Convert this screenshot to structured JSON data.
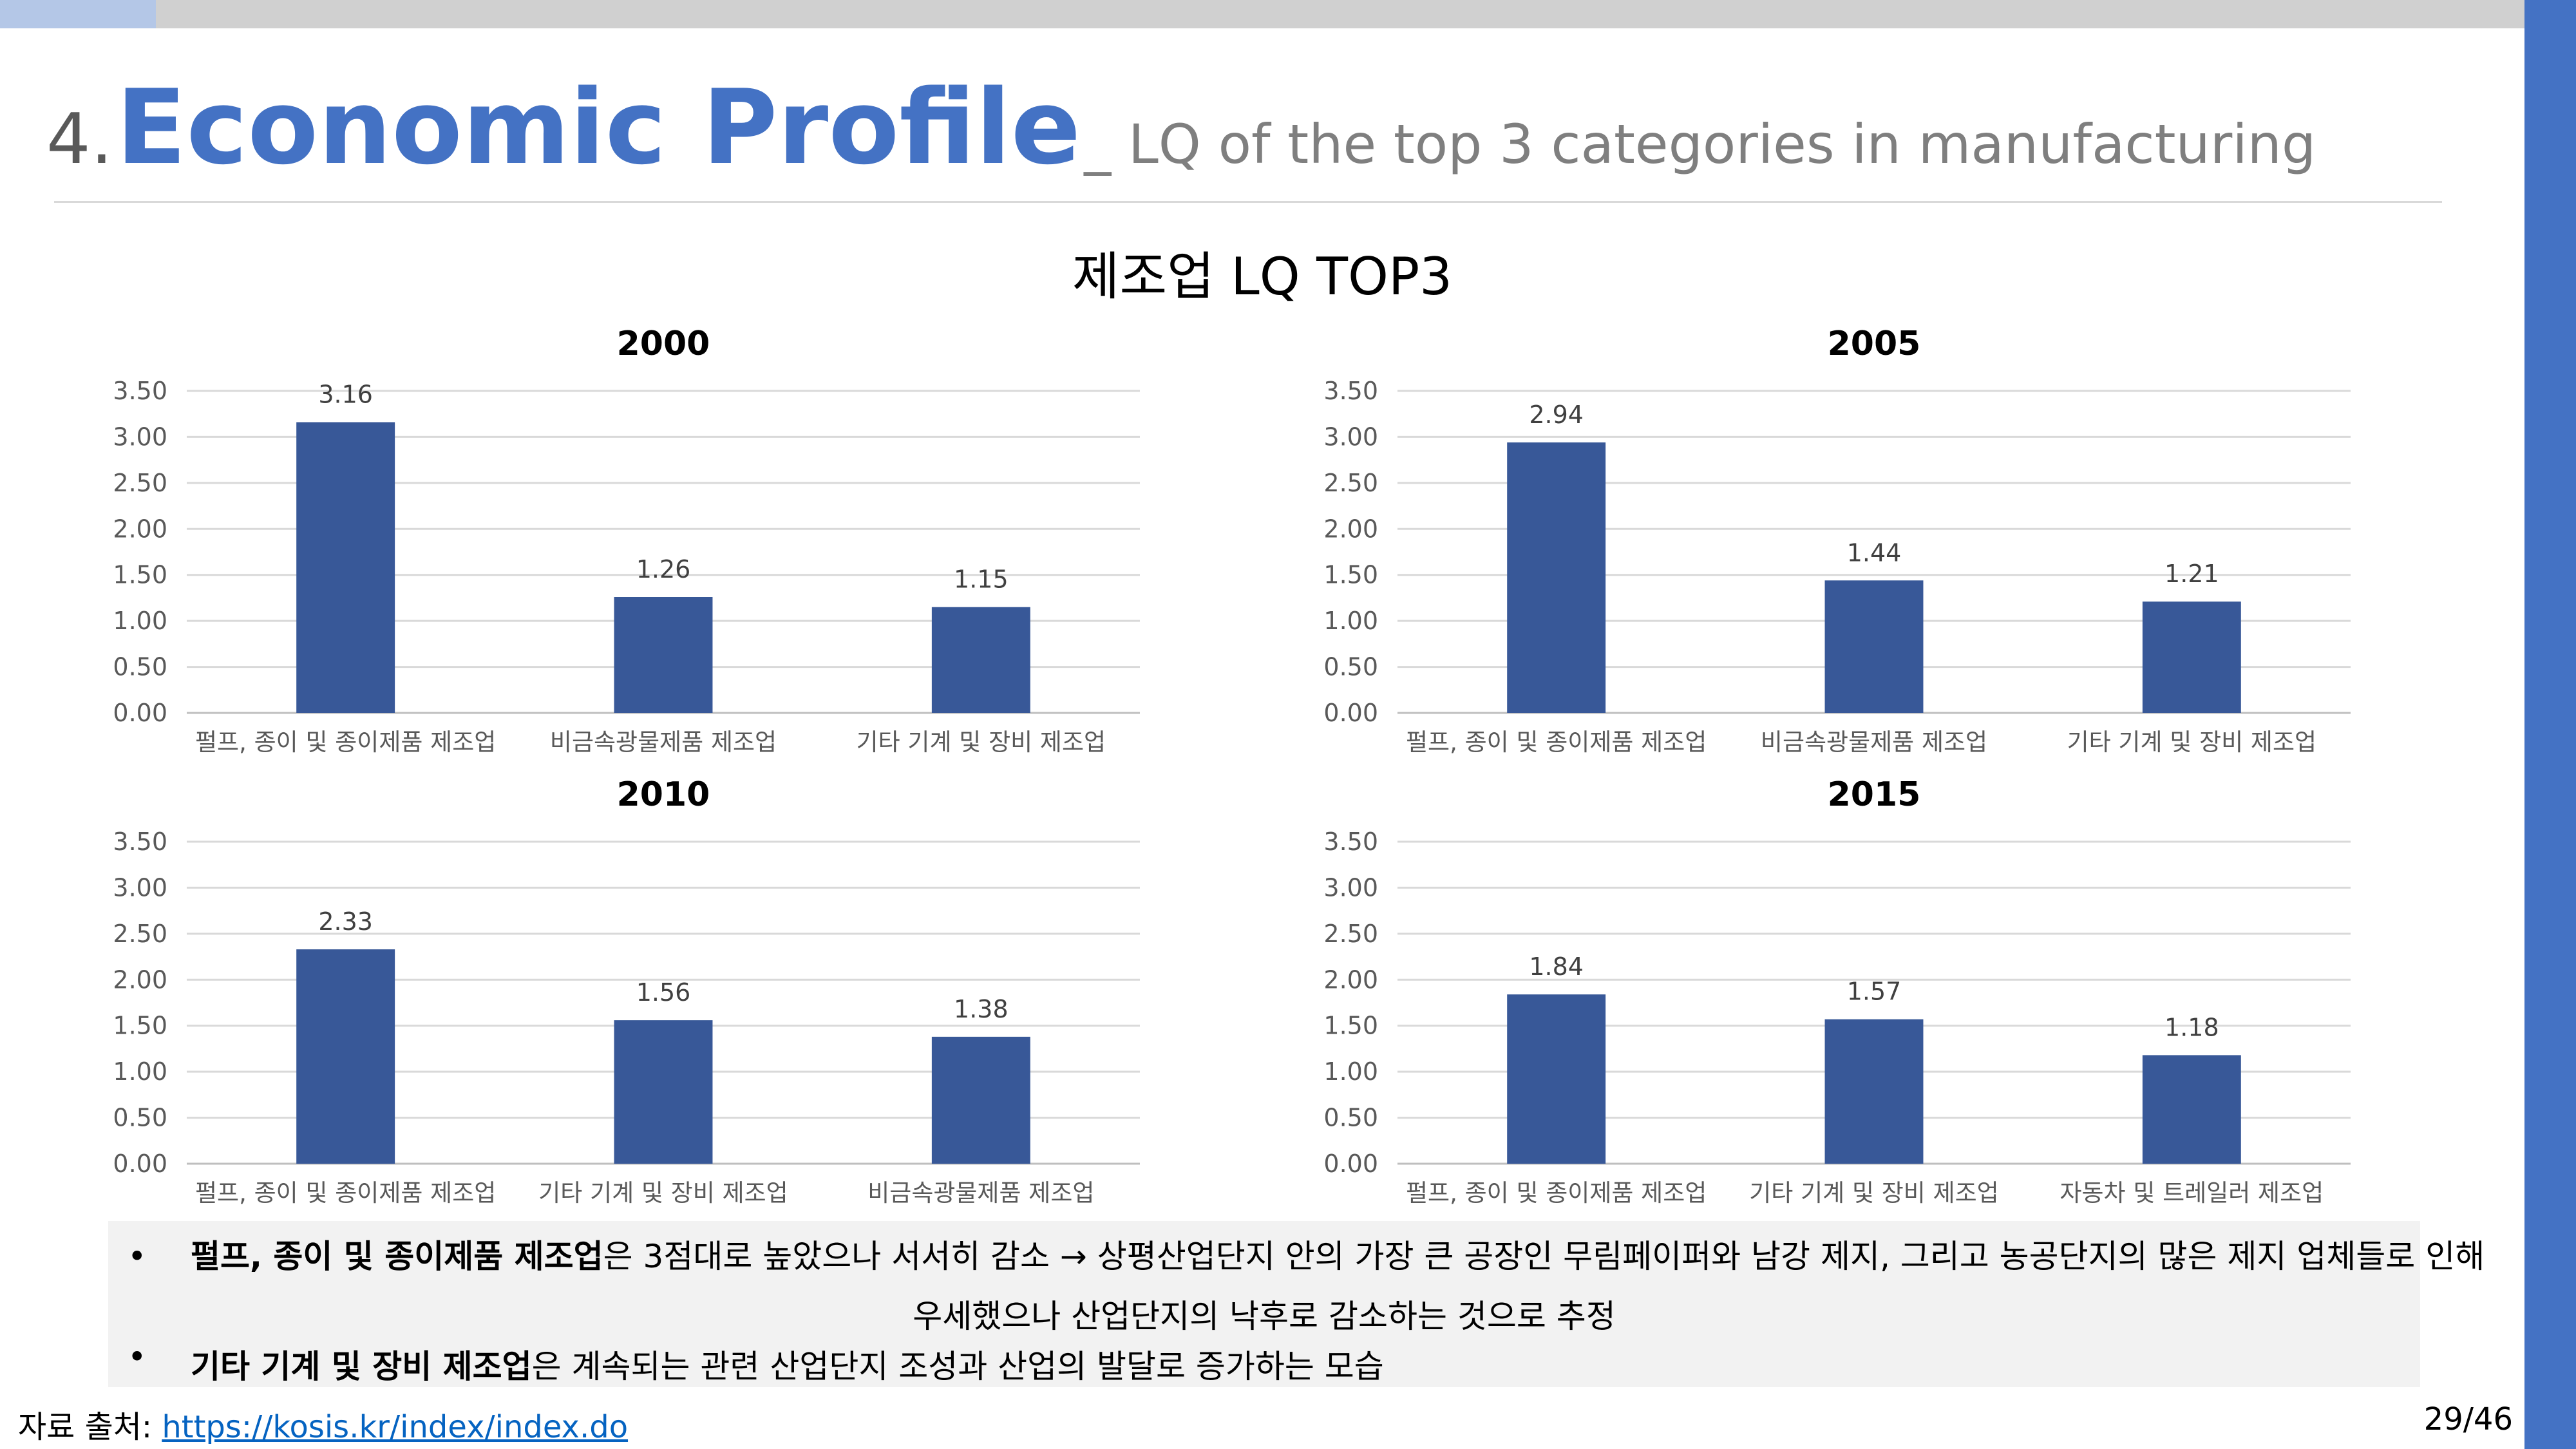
{
  "slide": {
    "title_number": "4.",
    "title_main": "Economic Profile",
    "title_sub": "_ LQ of the top 3 categories in manufacturing",
    "page": "29/46"
  },
  "figure": {
    "title": "제조업 LQ TOP3"
  },
  "chart_data": [
    {
      "type": "bar",
      "title": "2000",
      "categories": [
        "펄프, 종이 및 종이제품 제조업",
        "비금속광물제품 제조업",
        "기타 기계 및 장비 제조업"
      ],
      "values": [
        3.16,
        1.26,
        1.15
      ],
      "value_labels": [
        "3.16",
        "1.26",
        "1.15"
      ],
      "ylim": [
        0,
        3.5
      ],
      "yticks": [
        "0.00",
        "0.50",
        "1.00",
        "1.50",
        "2.00",
        "2.50",
        "3.00",
        "3.50"
      ],
      "grid": true,
      "bar_color": "#385898"
    },
    {
      "type": "bar",
      "title": "2005",
      "categories": [
        "펄프, 종이 및 종이제품 제조업",
        "비금속광물제품 제조업",
        "기타 기계 및 장비 제조업"
      ],
      "values": [
        2.94,
        1.44,
        1.21
      ],
      "value_labels": [
        "2.94",
        "1.44",
        "1.21"
      ],
      "ylim": [
        0,
        3.5
      ],
      "yticks": [
        "0.00",
        "0.50",
        "1.00",
        "1.50",
        "2.00",
        "2.50",
        "3.00",
        "3.50"
      ],
      "grid": true,
      "bar_color": "#385898"
    },
    {
      "type": "bar",
      "title": "2010",
      "categories": [
        "펄프, 종이 및 종이제품 제조업",
        "기타 기계 및 장비 제조업",
        "비금속광물제품 제조업"
      ],
      "values": [
        2.33,
        1.56,
        1.38
      ],
      "value_labels": [
        "2.33",
        "1.56",
        "1.38"
      ],
      "ylim": [
        0,
        3.5
      ],
      "yticks": [
        "0.00",
        "0.50",
        "1.00",
        "1.50",
        "2.00",
        "2.50",
        "3.00",
        "3.50"
      ],
      "grid": true,
      "bar_color": "#385898"
    },
    {
      "type": "bar",
      "title": "2015",
      "categories": [
        "펄프, 종이 및 종이제품 제조업",
        "기타 기계 및 장비 제조업",
        "자동차 및 트레일러 제조업"
      ],
      "values": [
        1.84,
        1.57,
        1.18
      ],
      "value_labels": [
        "1.84",
        "1.57",
        "1.18"
      ],
      "ylim": [
        0,
        3.5
      ],
      "yticks": [
        "0.00",
        "0.50",
        "1.00",
        "1.50",
        "2.00",
        "2.50",
        "3.00",
        "3.50"
      ],
      "grid": true,
      "bar_color": "#385898"
    }
  ],
  "notes": {
    "bullet": "•",
    "item1_bold": "펄프, 종이 및 종이제품 제조업",
    "item1_text": "은 3점대로 높았으나 서서히 감소 → 상평산업단지 안의 가장 큰 공장인 무림페이퍼와 남강 제지, 그리고 농공단지의 많은 제지 업체들로 인해",
    "item1_cont": "우세했으나 산업단지의 낙후로 감소하는 것으로 추정",
    "item2_bold": "기타 기계 및 장비 제조업",
    "item2_text": "은 계속되는 관련 산업단지 조성과 산업의 발달로 증가하는 모습"
  },
  "source": {
    "label": "자료 출처: ",
    "link": "https://kosis.kr/index/index.do"
  }
}
